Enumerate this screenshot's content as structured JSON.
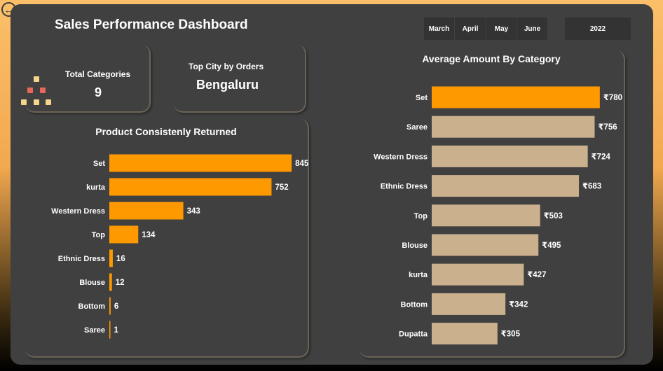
{
  "header": {
    "title": "Sales Performance Dashboard"
  },
  "months": [
    "March",
    "April",
    "May",
    "June"
  ],
  "year": "2022",
  "kpis": {
    "total_categories": {
      "label": "Total Categories",
      "value": "9"
    },
    "top_city": {
      "label": "Top City by Orders",
      "value": "Bengaluru"
    }
  },
  "colors": {
    "accent": "#ff9900",
    "tan": "#cbb08e",
    "panel": "#404040"
  },
  "chart_data": [
    {
      "type": "bar",
      "orientation": "horizontal",
      "title": "Product Consistenly Returned",
      "categories": [
        "Set",
        "kurta",
        "Western Dress",
        "Top",
        "Ethnic Dress",
        "Blouse",
        "Bottom",
        "Saree"
      ],
      "values": [
        845,
        752,
        343,
        134,
        16,
        12,
        6,
        1
      ],
      "value_labels": [
        "845",
        "752",
        "343",
        "134",
        "16",
        "12",
        "6",
        "1"
      ],
      "xlim": [
        0,
        900
      ],
      "grid": false
    },
    {
      "type": "bar",
      "orientation": "horizontal",
      "title": "Average Amount By Category",
      "categories": [
        "Set",
        "Saree",
        "Western Dress",
        "Ethnic Dress",
        "Top",
        "Blouse",
        "kurta",
        "Bottom",
        "Dupatta"
      ],
      "values": [
        780,
        756,
        724,
        683,
        503,
        495,
        427,
        342,
        305
      ],
      "value_labels": [
        "₹780",
        "₹756",
        "₹724",
        "₹683",
        "₹503",
        "₹495",
        "₹427",
        "₹342",
        "₹305"
      ],
      "highlight_index": 0,
      "xlim": [
        0,
        800
      ],
      "grid": false
    }
  ]
}
